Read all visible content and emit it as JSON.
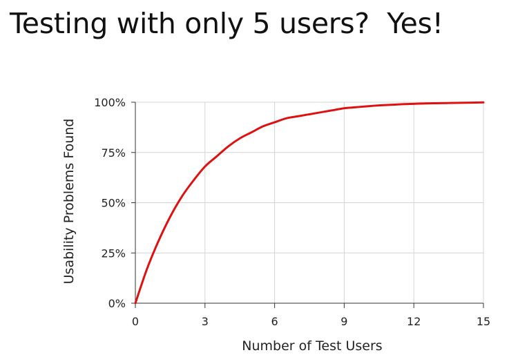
{
  "slide": {
    "title": "Testing with only 5 users?  Yes!"
  },
  "chart_data": {
    "type": "line",
    "title": "",
    "xlabel": "Number of Test Users",
    "ylabel": "Usability Problems Found",
    "xlim": [
      0,
      15
    ],
    "ylim": [
      0,
      100
    ],
    "x_ticks": [
      0,
      3,
      6,
      9,
      12,
      15
    ],
    "y_ticks": [
      0,
      25,
      50,
      75,
      100
    ],
    "y_tick_labels": [
      "0%",
      "25%",
      "50%",
      "75%",
      "100%"
    ],
    "grid": true,
    "legend": "none",
    "series": [
      {
        "color": "#e01010",
        "x": [
          0,
          0.5,
          1,
          1.5,
          2,
          2.5,
          3,
          3.5,
          4,
          4.5,
          5,
          5.5,
          6,
          6.5,
          7,
          7.5,
          8,
          8.5,
          9,
          9.5,
          10,
          10.5,
          11,
          11.5,
          12,
          12.5,
          13,
          13.5,
          14,
          14.5,
          15
        ],
        "values": [
          0,
          17,
          31,
          43,
          53,
          61,
          68,
          73,
          78,
          82,
          85,
          88,
          90,
          92,
          93,
          94,
          95,
          96,
          97,
          97.5,
          98,
          98.4,
          98.7,
          99,
          99.2,
          99.4,
          99.5,
          99.6,
          99.7,
          99.8,
          99.9
        ]
      }
    ]
  }
}
